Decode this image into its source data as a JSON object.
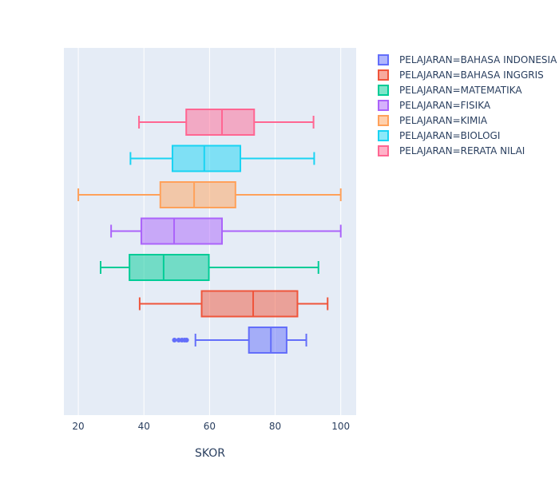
{
  "chart_data": {
    "type": "box",
    "orientation": "horizontal",
    "title": "",
    "xlabel": "SKOR",
    "ylabel": "",
    "xlim": [
      15.6,
      104.7
    ],
    "xticks": [
      20,
      40,
      60,
      80,
      100
    ],
    "xtick_labels": [
      "20",
      "40",
      "60",
      "80",
      "100"
    ],
    "grid": true,
    "legend_position": "top-right",
    "series": [
      {
        "name": "PELAJARAN=BAHASA INDONESIA",
        "color": "#636efa",
        "min": 55.7,
        "q1": 72.0,
        "median": 78.7,
        "q3": 83.5,
        "max": 89.5,
        "outliers": [
          49.3,
          50.6,
          51.6,
          52.4,
          53.0
        ]
      },
      {
        "name": "PELAJARAN=BAHASA INGGRIS",
        "color": "#EF553B",
        "min": 38.7,
        "q1": 57.6,
        "median": 73.3,
        "q3": 86.8,
        "max": 96.0,
        "outliers": []
      },
      {
        "name": "PELAJARAN=MATEMATIKA",
        "color": "#00cc96",
        "min": 26.8,
        "q1": 35.6,
        "median": 46.0,
        "q3": 59.8,
        "max": 93.2,
        "outliers": []
      },
      {
        "name": "PELAJARAN=FISIKA",
        "color": "#ab63fa",
        "min": 30.0,
        "q1": 39.2,
        "median": 49.2,
        "q3": 63.8,
        "max": 100.0,
        "outliers": []
      },
      {
        "name": "PELAJARAN=KIMIA",
        "color": "#FFA15A",
        "min": 20.0,
        "q1": 45.0,
        "median": 55.3,
        "q3": 67.9,
        "max": 100.0,
        "outliers": []
      },
      {
        "name": "PELAJARAN=BIOLOGI",
        "color": "#19d3f3",
        "min": 35.9,
        "q1": 48.7,
        "median": 58.4,
        "q3": 69.4,
        "max": 91.9,
        "outliers": []
      },
      {
        "name": "PELAJARAN=RERATA NILAI",
        "color": "#FF6692",
        "min": 38.5,
        "q1": 52.9,
        "median": 63.8,
        "q3": 73.6,
        "max": 91.7,
        "outliers": []
      }
    ]
  }
}
